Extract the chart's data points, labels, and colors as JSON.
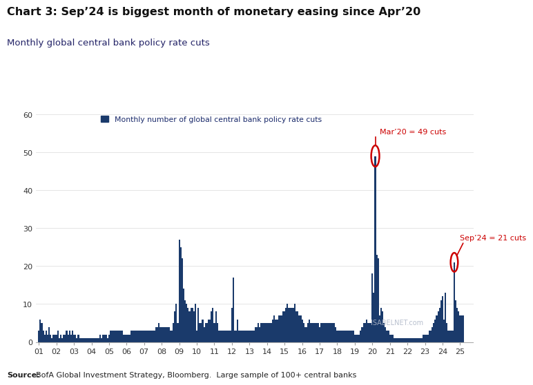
{
  "title": "Chart 3: Sep’24 is biggest month of monetary easing since Apr’20",
  "subtitle": "Monthly global central bank policy rate cuts",
  "legend_label": "Monthly number of global central bank policy rate cuts",
  "source_bold": "Source:",
  "source_text": "BofA Global Investment Strategy, Bloomberg.  Large sample of 100+ central banks",
  "bar_color": "#1a3a6b",
  "annotation1_label": "Mar’20 = 49 cuts",
  "annotation2_label": "Sep’24 = 21 cuts",
  "annotation_color": "#cc0000",
  "watermark": "ISABELNET.com",
  "ylim": [
    0,
    60
  ],
  "yticks": [
    0,
    10,
    20,
    30,
    40,
    50,
    60
  ],
  "xlabel_years": [
    "01",
    "02",
    "03",
    "04",
    "05",
    "06",
    "07",
    "08",
    "09",
    "10",
    "11",
    "12",
    "13",
    "14",
    "15",
    "16",
    "17",
    "18",
    "19",
    "20",
    "21",
    "22",
    "23",
    "24",
    "25"
  ],
  "monthly_values": [
    3,
    6,
    5,
    3,
    2,
    3,
    2,
    4,
    2,
    1,
    2,
    2,
    2,
    3,
    1,
    2,
    1,
    2,
    2,
    3,
    2,
    3,
    2,
    3,
    2,
    2,
    1,
    2,
    1,
    1,
    1,
    1,
    1,
    1,
    1,
    1,
    1,
    1,
    1,
    1,
    1,
    1,
    2,
    1,
    2,
    2,
    2,
    1,
    2,
    3,
    3,
    3,
    3,
    3,
    3,
    3,
    3,
    3,
    2,
    2,
    2,
    2,
    2,
    3,
    3,
    3,
    3,
    3,
    3,
    3,
    3,
    3,
    3,
    3,
    3,
    3,
    3,
    3,
    3,
    3,
    4,
    4,
    5,
    4,
    4,
    4,
    4,
    4,
    4,
    4,
    3,
    3,
    5,
    8,
    10,
    5,
    27,
    25,
    22,
    14,
    11,
    10,
    9,
    8,
    9,
    9,
    8,
    10,
    3,
    9,
    5,
    5,
    6,
    4,
    5,
    5,
    6,
    6,
    8,
    9,
    5,
    8,
    5,
    3,
    3,
    3,
    3,
    3,
    3,
    3,
    3,
    3,
    9,
    17,
    3,
    3,
    6,
    3,
    3,
    3,
    3,
    3,
    3,
    3,
    3,
    3,
    3,
    3,
    4,
    4,
    5,
    4,
    5,
    5,
    5,
    5,
    5,
    5,
    5,
    5,
    6,
    7,
    6,
    6,
    7,
    7,
    7,
    8,
    8,
    9,
    10,
    9,
    9,
    9,
    9,
    10,
    8,
    8,
    7,
    7,
    6,
    5,
    4,
    4,
    5,
    6,
    5,
    5,
    5,
    5,
    5,
    5,
    4,
    5,
    5,
    5,
    5,
    5,
    5,
    5,
    5,
    5,
    5,
    4,
    3,
    3,
    3,
    3,
    3,
    3,
    3,
    3,
    3,
    3,
    3,
    3,
    2,
    2,
    2,
    2,
    3,
    4,
    5,
    5,
    6,
    5,
    5,
    5,
    18,
    13,
    49,
    23,
    22,
    7,
    9,
    8,
    5,
    4,
    3,
    3,
    2,
    2,
    2,
    1,
    1,
    1,
    1,
    1,
    1,
    1,
    1,
    1,
    1,
    1,
    1,
    1,
    1,
    1,
    1,
    1,
    1,
    1,
    1,
    2,
    2,
    2,
    2,
    3,
    3,
    4,
    5,
    6,
    7,
    8,
    9,
    11,
    12,
    6,
    13,
    5,
    3,
    3,
    3,
    3,
    21,
    11,
    9,
    8,
    7,
    7,
    7,
    0,
    0,
    0,
    0,
    0,
    0,
    0,
    0,
    0
  ]
}
